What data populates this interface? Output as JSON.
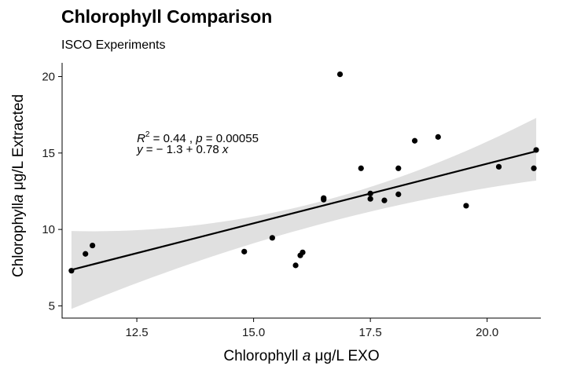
{
  "chart_data": {
    "type": "scatter",
    "title": "Chlorophyll Comparison",
    "subtitle": "ISCO Experiments",
    "xlabel": {
      "pre": "Chlorophyll ",
      "italic": "a",
      "post": " μg/L EXO"
    },
    "ylabel": {
      "pre": "Chlorophyll",
      "italic": "a",
      "post": " μg/L Extracted"
    },
    "xlim": [
      10.9,
      21.15
    ],
    "ylim": [
      4.2,
      20.9
    ],
    "xticks": [
      12.5,
      15.0,
      17.5,
      20.0
    ],
    "xtick_labels": [
      "12.5",
      "15.0",
      "17.5",
      "20.0"
    ],
    "yticks": [
      5,
      10,
      15,
      20
    ],
    "ytick_labels": [
      "5",
      "10",
      "15",
      "20"
    ],
    "grid": false,
    "points": [
      {
        "x": 11.1,
        "y": 7.3
      },
      {
        "x": 11.4,
        "y": 8.4
      },
      {
        "x": 11.55,
        "y": 8.95
      },
      {
        "x": 14.8,
        "y": 8.55
      },
      {
        "x": 15.4,
        "y": 9.45
      },
      {
        "x": 15.9,
        "y": 7.65
      },
      {
        "x": 16.0,
        "y": 8.3
      },
      {
        "x": 16.05,
        "y": 8.5
      },
      {
        "x": 16.5,
        "y": 12.05
      },
      {
        "x": 16.5,
        "y": 11.95
      },
      {
        "x": 16.85,
        "y": 20.15
      },
      {
        "x": 17.3,
        "y": 14.0
      },
      {
        "x": 17.5,
        "y": 12.35
      },
      {
        "x": 17.5,
        "y": 12.0
      },
      {
        "x": 17.8,
        "y": 11.9
      },
      {
        "x": 18.1,
        "y": 14.0
      },
      {
        "x": 18.1,
        "y": 12.3
      },
      {
        "x": 18.45,
        "y": 15.8
      },
      {
        "x": 18.95,
        "y": 16.05
      },
      {
        "x": 19.55,
        "y": 11.55
      },
      {
        "x": 20.25,
        "y": 14.1
      },
      {
        "x": 21.0,
        "y": 14.0
      },
      {
        "x": 21.05,
        "y": 15.2
      }
    ],
    "fit": {
      "type": "linear",
      "intercept": -1.3,
      "slope": 0.78,
      "x_range": [
        11.1,
        21.05
      ],
      "ci_band": [
        {
          "x": 11.1,
          "lo": 4.8,
          "hi": 9.9
        },
        {
          "x": 16.075,
          "lo": 10.05,
          "hi": 11.55
        },
        {
          "x": 21.05,
          "lo": 13.2,
          "hi": 17.3
        }
      ]
    },
    "annotation": {
      "r2_label": "R",
      "r2_sup": "2",
      "r2_value": " = 0.44 ,  ",
      "p_label": "p",
      "p_value": " = 0.00055",
      "eq_y": "y",
      "eq_body": " = − 1.3 + 0.78 ",
      "eq_x": "x",
      "anchor_x": 12.5,
      "anchor_y": 15.3
    },
    "colors": {
      "point": "#000000",
      "line": "#000000",
      "band": "#e0e0e0",
      "axis": "#000000"
    }
  }
}
